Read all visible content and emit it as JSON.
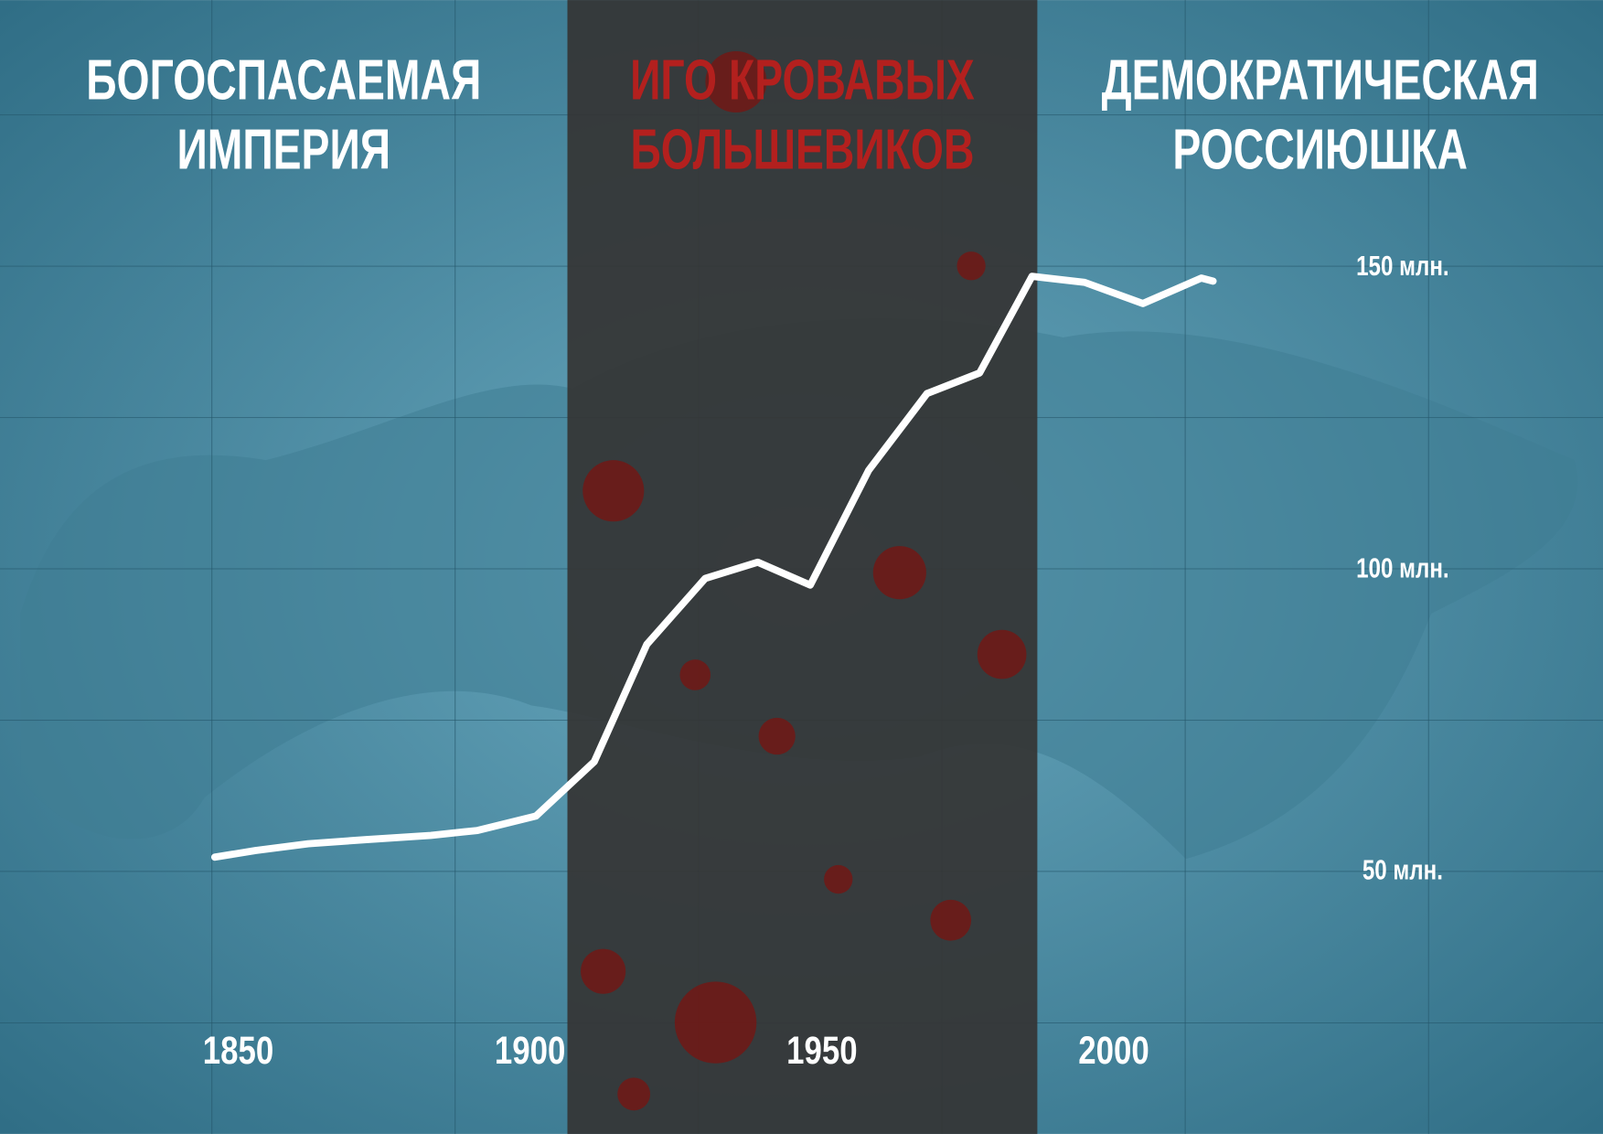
{
  "chart_data": {
    "type": "line",
    "x": [
      1846,
      1853,
      1862,
      1872,
      1883,
      1891,
      1901,
      1911,
      1920,
      1930,
      1939,
      1948,
      1958,
      1968,
      1977,
      1986,
      1995,
      2005,
      2015,
      2017
    ],
    "values": [
      52.5,
      53.6,
      54.7,
      55.4,
      56.1,
      56.9,
      59.3,
      68.3,
      87.7,
      98.6,
      101.3,
      97.5,
      116.5,
      129.2,
      132.6,
      148.6,
      147.6,
      144.1,
      148.3,
      147.8
    ],
    "color": "#ffffff",
    "xlim": [
      1809.2,
      2083.8
    ],
    "ylim": [
      6.7,
      194.3
    ],
    "xticks": [
      1850,
      1900,
      1950,
      2000
    ],
    "yticks": [
      {
        "value": 50,
        "label": "50 млн."
      },
      {
        "value": 100,
        "label": "100 млн."
      },
      {
        "value": 150,
        "label": "150 млн."
      }
    ],
    "shaded_span": [
      1906.4,
      1986.9
    ],
    "shaded_color": "#353535",
    "annotations": [
      {
        "lines": [
          "БОГОСПАСАЕМАЯ",
          "ИМПЕРИЯ"
        ],
        "color": "#ffffff"
      },
      {
        "lines": [
          "ИГО КРОВАВЫХ",
          "БОЛЬШЕВИКОВ"
        ],
        "color": "#b3201e"
      },
      {
        "lines": [
          "ДЕМОКРАТИЧЕСКАЯ",
          "РОССИЮШКА"
        ],
        "color": "#ffffff"
      }
    ]
  }
}
